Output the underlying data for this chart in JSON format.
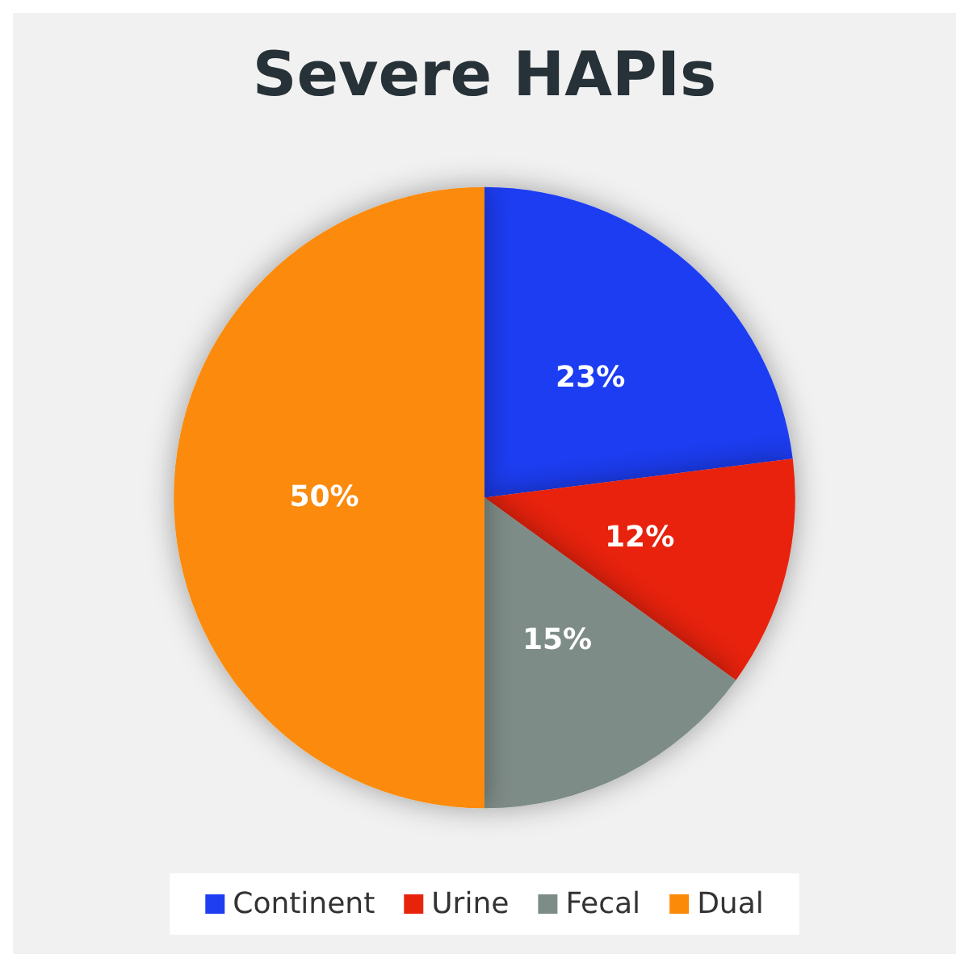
{
  "chart_data": {
    "type": "pie",
    "title": "Severe HAPIs",
    "categories": [
      "Continent",
      "Urine",
      "Fecal",
      "Dual"
    ],
    "values": [
      23,
      12,
      15,
      50
    ],
    "colors": [
      "#1f3ef2",
      "#e8230c",
      "#7e8c87",
      "#fb8a08"
    ],
    "value_labels": [
      "23%",
      "12%",
      "15%",
      "50%"
    ],
    "legend": "bottom"
  }
}
